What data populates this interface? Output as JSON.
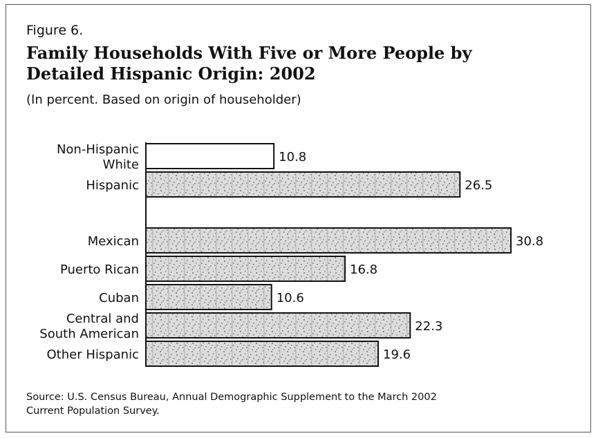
{
  "figure": {
    "label": "Figure 6.",
    "title_line1": "Family Households With Five or More People by",
    "title_line2": "Detailed Hispanic Origin: 2002",
    "subtitle": "(In percent.  Based on origin of householder)",
    "source_line1": "Source: U.S. Census Bureau, Annual Demographic Supplement to the March 2002",
    "source_line2": "Current Population Survey."
  },
  "chart_data": {
    "type": "bar",
    "orientation": "horizontal",
    "title": "Family Households With Five or More People by Detailed Hispanic Origin: 2002",
    "xlim": [
      0,
      30.8
    ],
    "grid": false,
    "categories": [
      [
        "Non-Hispanic",
        "White"
      ],
      [
        "Hispanic"
      ],
      [
        "Mexican"
      ],
      [
        "Puerto Rican"
      ],
      [
        "Cuban"
      ],
      [
        "Central and",
        "South American"
      ],
      [
        "Other Hispanic"
      ]
    ],
    "values": [
      10.8,
      26.5,
      30.8,
      16.8,
      10.6,
      22.3,
      19.6
    ],
    "value_labels": [
      "10.8",
      "26.5",
      "30.8",
      "16.8",
      "10.6",
      "22.3",
      "19.6"
    ],
    "fill_styles": [
      "white",
      "textured",
      "textured",
      "textured",
      "textured",
      "textured",
      "textured"
    ],
    "colors": {
      "bar_outline": "#111111",
      "texture_base": "#dcdcdc",
      "texture_dots": "#8a8a8a"
    }
  }
}
